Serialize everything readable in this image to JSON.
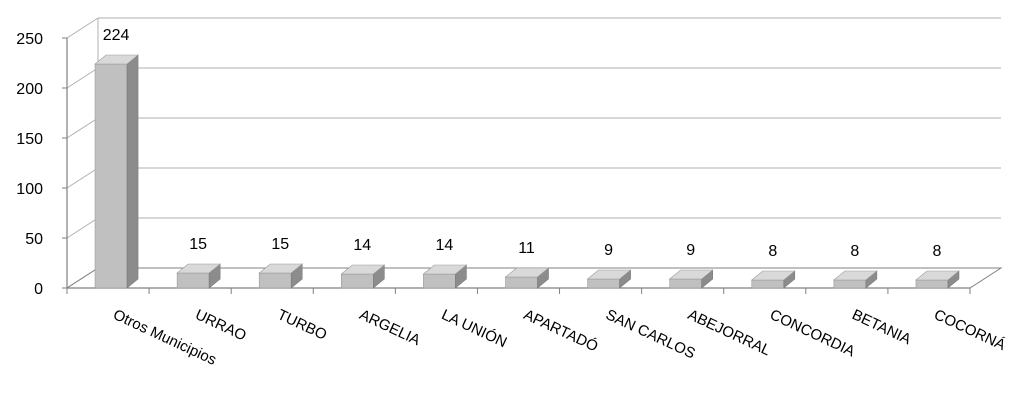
{
  "chart_data": {
    "type": "bar",
    "style": "3d-column",
    "title": "",
    "xlabel": "",
    "ylabel": "",
    "categories": [
      "Otros Municipios",
      "URRAO",
      "TURBO",
      "ARGELIA",
      "LA UNIÓN",
      "APARTADÓ",
      "SAN CARLOS",
      "ABEJORRAL",
      "CONCORDIA",
      "BETANIA",
      "COCORNÁ"
    ],
    "values": [
      224,
      15,
      15,
      14,
      14,
      11,
      9,
      9,
      8,
      8,
      8
    ],
    "data_labels": [
      "224",
      "15",
      "15",
      "14",
      "14",
      "11",
      "9",
      "9",
      "8",
      "8",
      "8"
    ],
    "y_ticks": [
      0,
      50,
      100,
      150,
      200,
      250
    ],
    "y_tick_labels": [
      "0",
      "50",
      "100",
      "150",
      "200",
      "250"
    ],
    "ylim": [
      0,
      250
    ],
    "grid": true,
    "legend": "none",
    "colors": {
      "bar_front": "#c0c0c0",
      "bar_top": "#d9d9d9",
      "bar_side": "#8c8c8c",
      "gridline": "#b0b0b0",
      "axis": "#808080"
    }
  }
}
